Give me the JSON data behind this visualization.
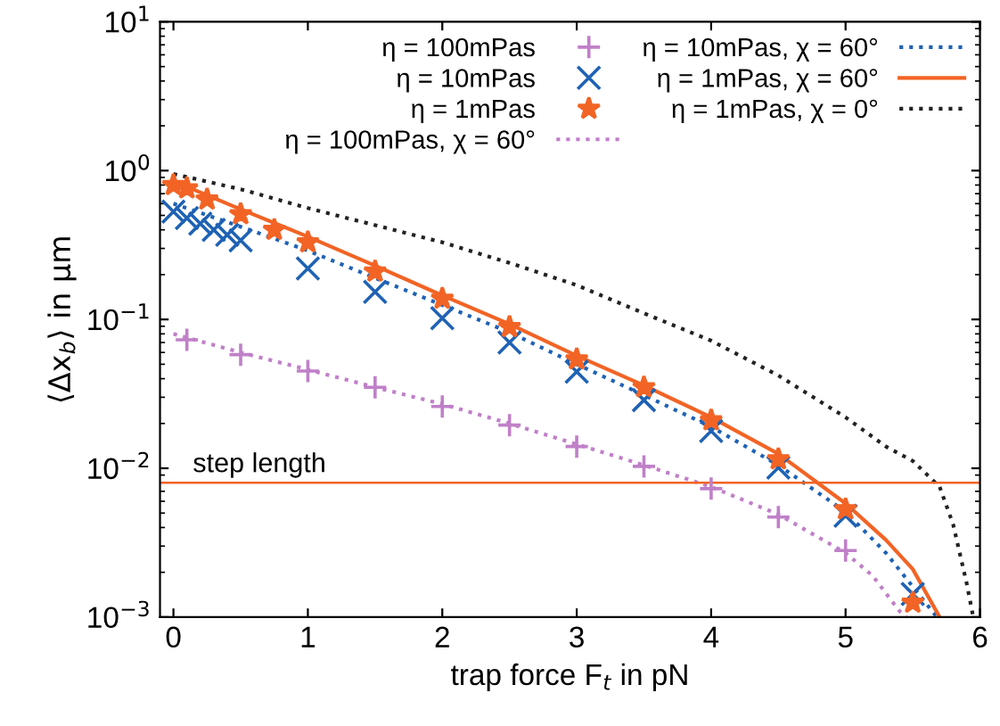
{
  "chart_data": {
    "type": "scatter",
    "xlabel": "trap force F$_{t}$ in pN",
    "ylabel": "⟨Δx$_{b}$⟩ in μm",
    "log": "y",
    "xlim": [
      -0.1,
      6
    ],
    "ylim": [
      0.001,
      10
    ],
    "xticks": [
      0,
      1,
      2,
      3,
      4,
      5,
      6
    ],
    "yticks": [
      {
        "value": 0.001,
        "label": "10$^{−3}$"
      },
      {
        "value": 0.01,
        "label": "10$^{−2}$"
      },
      {
        "value": 0.1,
        "label": "10$^{−1}$"
      },
      {
        "value": 1,
        "label": "10$^{0}$"
      },
      {
        "value": 10,
        "label": "10$^{1}$"
      }
    ],
    "grid": false,
    "legend": "top right",
    "series": [
      {
        "name": "η = 100mPas",
        "marker": "plus",
        "color": "#c080c8",
        "x": [
          0.1,
          0.5,
          1,
          1.5,
          2,
          2.5,
          3,
          3.5,
          4,
          4.5,
          5
        ],
        "values": [
          0.073,
          0.058,
          0.045,
          0.035,
          0.026,
          0.0195,
          0.014,
          0.0103,
          0.0073,
          0.0047,
          0.0028
        ]
      },
      {
        "name": "η = 10mPas",
        "marker": "cross",
        "color": "#1f62b4",
        "x": [
          0,
          0.1,
          0.2,
          0.3,
          0.4,
          0.5,
          1,
          1.5,
          2,
          2.5,
          3,
          3.5,
          4,
          4.5,
          5,
          5.5
        ],
        "values": [
          0.53,
          0.48,
          0.44,
          0.4,
          0.37,
          0.34,
          0.22,
          0.153,
          0.102,
          0.07,
          0.0445,
          0.0287,
          0.0178,
          0.0101,
          0.0048,
          0.00143
        ]
      },
      {
        "name": "η = 1mPas",
        "marker": "star",
        "color": "#f26425",
        "x": [
          0,
          0.1,
          0.25,
          0.5,
          0.75,
          1,
          1.5,
          2,
          2.5,
          3,
          3.5,
          4,
          4.5,
          5,
          5.5
        ],
        "values": [
          0.8,
          0.76,
          0.64,
          0.51,
          0.4,
          0.33,
          0.21,
          0.138,
          0.089,
          0.054,
          0.035,
          0.021,
          0.0115,
          0.0053,
          0.00125
        ]
      },
      {
        "name": "η = 100mPas, χ = 60°",
        "type": "line",
        "line_style": "dotted",
        "color": "#c080c8",
        "x": [
          0,
          0.5,
          1,
          1.5,
          2,
          2.5,
          3,
          3.5,
          4,
          4.5,
          5,
          5.2,
          5.4,
          5.45
        ],
        "values": [
          0.08,
          0.06,
          0.046,
          0.035,
          0.027,
          0.02,
          0.0145,
          0.0105,
          0.0075,
          0.0049,
          0.0027,
          0.0019,
          0.0011,
          0.001
        ]
      },
      {
        "name": "η = 10mPas, χ = 60°",
        "type": "line",
        "line_style": "dotted",
        "color": "#1f62b4",
        "x": [
          0,
          0.5,
          1,
          1.5,
          2,
          2.5,
          3,
          3.5,
          4,
          4.5,
          5,
          5.3,
          5.5,
          5.68
        ],
        "values": [
          0.6,
          0.42,
          0.29,
          0.19,
          0.125,
          0.082,
          0.05,
          0.031,
          0.019,
          0.0105,
          0.0051,
          0.0027,
          0.0016,
          0.001
        ]
      },
      {
        "name": "η = 1mPas, χ = 60°",
        "type": "line",
        "line_style": "solid",
        "color": "#f26425",
        "x": [
          0,
          0.5,
          1,
          1.5,
          2,
          2.5,
          3,
          3.5,
          4,
          4.5,
          5,
          5.3,
          5.5,
          5.7
        ],
        "values": [
          0.85,
          0.55,
          0.36,
          0.23,
          0.145,
          0.093,
          0.057,
          0.036,
          0.022,
          0.0125,
          0.0058,
          0.0033,
          0.0021,
          0.001
        ]
      },
      {
        "name": "η = 1mPas, χ = 0°",
        "type": "line",
        "line_style": "dotted",
        "color": "#222222",
        "x": [
          0,
          0.5,
          1,
          1.5,
          2,
          2.5,
          3,
          3.5,
          4,
          4.5,
          5,
          5.3,
          5.5,
          5.7,
          5.8,
          5.9,
          5.95
        ],
        "values": [
          0.95,
          0.75,
          0.56,
          0.43,
          0.33,
          0.24,
          0.17,
          0.11,
          0.072,
          0.042,
          0.022,
          0.014,
          0.0112,
          0.0075,
          0.0042,
          0.0017,
          0.001
        ]
      }
    ],
    "ref_lines": [
      {
        "axis": "y",
        "value": 0.008,
        "label": "step length",
        "color": "#f26425",
        "line_style": "solid"
      }
    ]
  }
}
